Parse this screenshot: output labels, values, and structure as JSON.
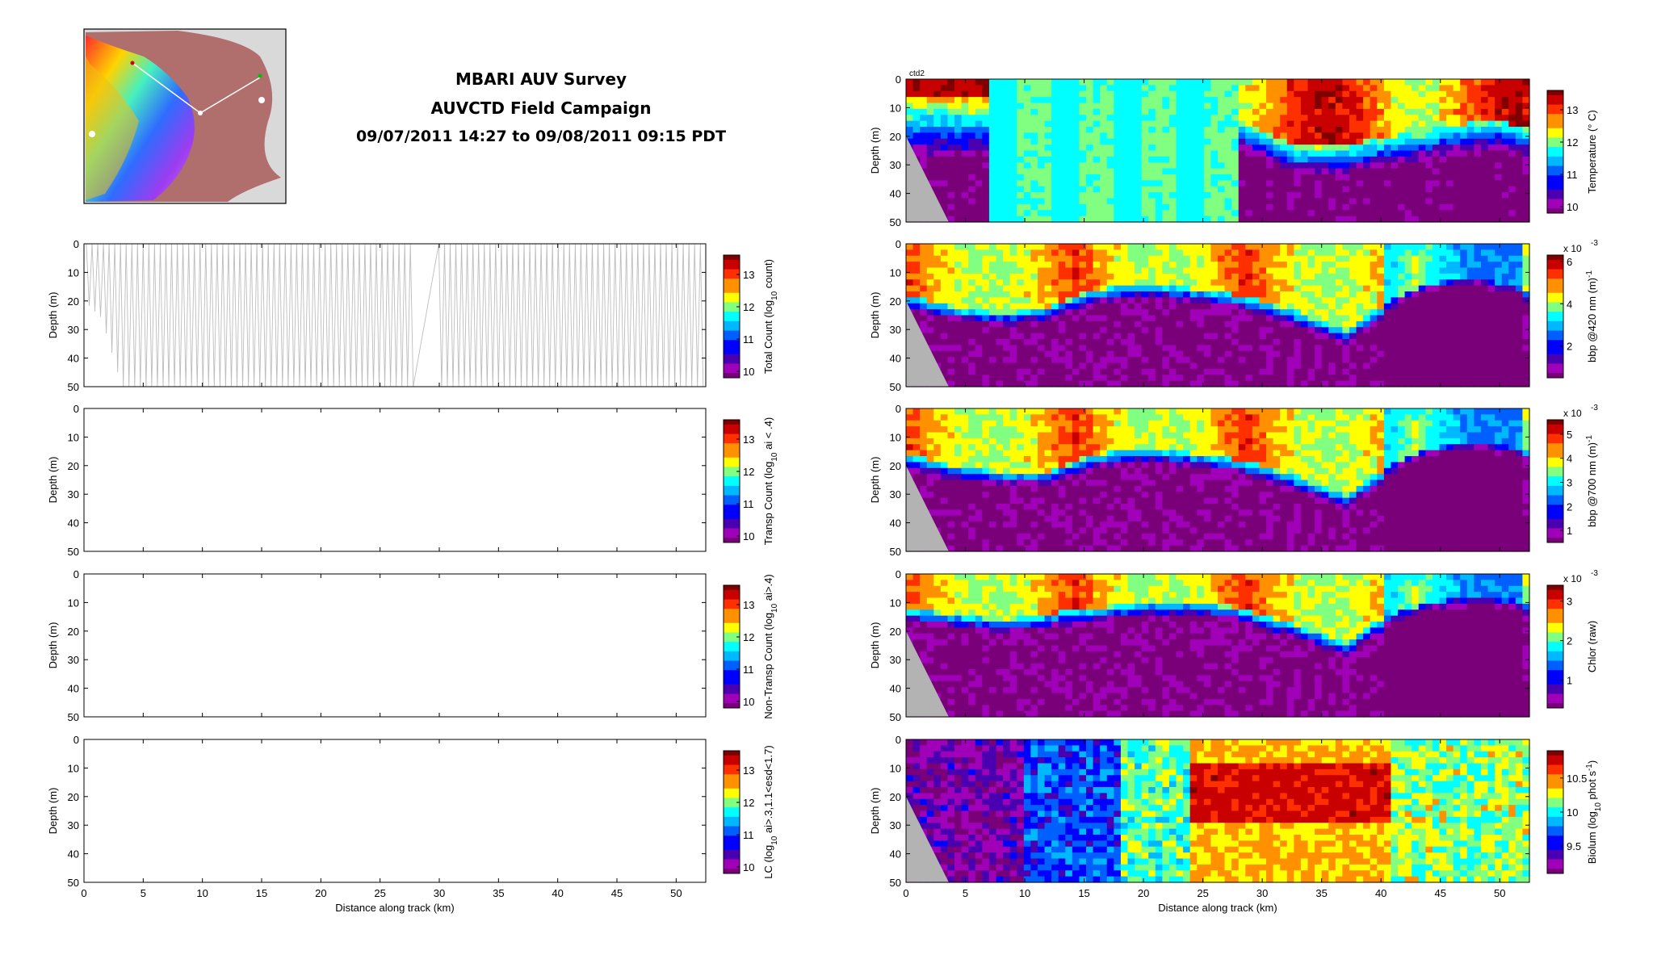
{
  "figure": {
    "title_line1": "MBARI AUV Survey",
    "title_line2": "AUVCTD Field Campaign",
    "title_line3": "09/07/2011 14:27 to 09/08/2011 09:15 PDT",
    "corner_label": "ctd2"
  },
  "colors": {
    "frame": "#000000",
    "trace": "#bdbdbd",
    "bathymetry": "#b3b3b3",
    "colormap": [
      "#7a007a",
      "#a000b8",
      "#4a00b0",
      "#0000ff",
      "#0060ff",
      "#00b8ff",
      "#00ffff",
      "#80ff80",
      "#ffff00",
      "#ff9000",
      "#ff3000",
      "#c80000",
      "#800000"
    ]
  },
  "map_inset": {
    "description_icon": "location-map-icon"
  },
  "chart_data": [
    {
      "id": "total-count",
      "type": "heatmap",
      "xlabel": "",
      "ylabel": "Depth (m)",
      "xlim": [
        0,
        52.5
      ],
      "ylim": [
        50,
        0
      ],
      "xticks": [],
      "yticks": [
        "0",
        "10",
        "20",
        "30",
        "40",
        "50"
      ],
      "colorbar": {
        "label_main": "Total Count (log",
        "label_sub": "10",
        "label_end": " count)",
        "ticks": [
          "10",
          "11",
          "12",
          "13"
        ],
        "range": [
          9.8,
          13.6
        ]
      },
      "trace": {
        "profile_spacing_km": 0.24,
        "gap_km": [
          28.0,
          29.8
        ],
        "shallow_edge": [
          [
            0,
            20
          ],
          [
            1.5,
            26
          ],
          [
            3.2,
            50
          ]
        ]
      }
    },
    {
      "id": "transp-count",
      "type": "heatmap",
      "xlabel": "",
      "ylabel": "Depth (m)",
      "xlim": [
        0,
        52.5
      ],
      "ylim": [
        50,
        0
      ],
      "xticks": [],
      "yticks": [
        "0",
        "10",
        "20",
        "30",
        "40",
        "50"
      ],
      "colorbar": {
        "label_main": "Transp Count (log",
        "label_sub": "10",
        "label_end": " ai < .4)",
        "ticks": [
          "10",
          "11",
          "12",
          "13"
        ],
        "range": [
          9.8,
          13.6
        ]
      }
    },
    {
      "id": "nontransp-count",
      "type": "heatmap",
      "xlabel": "",
      "ylabel": "Depth (m)",
      "xlim": [
        0,
        52.5
      ],
      "ylim": [
        50,
        0
      ],
      "xticks": [],
      "yticks": [
        "0",
        "10",
        "20",
        "30",
        "40",
        "50"
      ],
      "colorbar": {
        "label_main": "Non-Transp Count (log",
        "label_sub": "10",
        "label_end": " ai>.4)",
        "ticks": [
          "10",
          "11",
          "12",
          "13"
        ],
        "range": [
          9.8,
          13.6
        ]
      }
    },
    {
      "id": "lc-count",
      "type": "heatmap",
      "xlabel": "Distance along track (km)",
      "ylabel": "Depth (m)",
      "xlim": [
        0,
        52.5
      ],
      "ylim": [
        50,
        0
      ],
      "xticks": [
        "0",
        "5",
        "10",
        "15",
        "20",
        "25",
        "30",
        "35",
        "40",
        "45",
        "50"
      ],
      "yticks": [
        "0",
        "10",
        "20",
        "30",
        "40",
        "50"
      ],
      "colorbar": {
        "label_main": "LC (log",
        "label_sub": "10",
        "label_end": " ai>.3,1.1<esd<1.7)",
        "ticks": [
          "10",
          "11",
          "12",
          "13"
        ],
        "range": [
          9.8,
          13.6
        ]
      }
    },
    {
      "id": "temperature",
      "type": "heatmap",
      "xlabel": "",
      "ylabel": "Depth (m)",
      "xlim": [
        0,
        52.5
      ],
      "ylim": [
        50,
        0
      ],
      "xticks": [],
      "yticks": [
        "0",
        "10",
        "20",
        "30",
        "40",
        "50"
      ],
      "colorbar": {
        "label_main": "Temperature (° C)",
        "label_sub": "",
        "label_end": "",
        "ticks": [
          "10",
          "11",
          "12",
          "13"
        ],
        "range": [
          9.8,
          13.6
        ]
      },
      "field": {
        "kind": "temperature",
        "warm_start_km": 27.9,
        "thermocline_m": [
          [
            28,
            14
          ],
          [
            30,
            18
          ],
          [
            33,
            24
          ],
          [
            37,
            23
          ],
          [
            41,
            20
          ],
          [
            45,
            17
          ],
          [
            50,
            14
          ],
          [
            52.5,
            18
          ]
        ]
      }
    },
    {
      "id": "bbp420",
      "type": "heatmap",
      "xlabel": "",
      "ylabel": "Depth (m)",
      "xlim": [
        0,
        52.5
      ],
      "ylim": [
        50,
        0
      ],
      "xticks": [],
      "yticks": [
        "0",
        "10",
        "20",
        "30",
        "40",
        "50"
      ],
      "colorbar": {
        "label_main": "bbp @420 nm (m",
        "label_sup": "-1",
        "label_end": ")",
        "ticks": [
          "2",
          "4",
          "6"
        ],
        "range": [
          0.5,
          6.3
        ],
        "exponent": "x 10",
        "exponent_power": "-3"
      },
      "field": {
        "kind": "layer",
        "layer_depth_m": [
          [
            0,
            18
          ],
          [
            4,
            22
          ],
          [
            8,
            24
          ],
          [
            12,
            22
          ],
          [
            16,
            16
          ],
          [
            20,
            14
          ],
          [
            25,
            16
          ],
          [
            28,
            18
          ],
          [
            33,
            24
          ],
          [
            37,
            30
          ],
          [
            40,
            22
          ],
          [
            44,
            14
          ],
          [
            48,
            12
          ],
          [
            52.5,
            16
          ]
        ]
      }
    },
    {
      "id": "bbp700",
      "type": "heatmap",
      "xlabel": "",
      "ylabel": "Depth (m)",
      "xlim": [
        0,
        52.5
      ],
      "ylim": [
        50,
        0
      ],
      "xticks": [],
      "yticks": [
        "0",
        "10",
        "20",
        "30",
        "40",
        "50"
      ],
      "colorbar": {
        "label_main": "bbp @700 nm (m",
        "label_sup": "-1",
        "label_end": ")",
        "ticks": [
          "1",
          "2",
          "3",
          "4",
          "5"
        ],
        "range": [
          0.5,
          5.6
        ],
        "exponent": "x 10",
        "exponent_power": "-3"
      },
      "field": {
        "kind": "layer",
        "layer_depth_m": [
          [
            0,
            16
          ],
          [
            4,
            20
          ],
          [
            8,
            22
          ],
          [
            12,
            22
          ],
          [
            16,
            16
          ],
          [
            20,
            14
          ],
          [
            25,
            16
          ],
          [
            28,
            18
          ],
          [
            33,
            24
          ],
          [
            37,
            30
          ],
          [
            40,
            22
          ],
          [
            44,
            14
          ],
          [
            48,
            12
          ],
          [
            52.5,
            14
          ]
        ]
      }
    },
    {
      "id": "chlor",
      "type": "heatmap",
      "xlabel": "",
      "ylabel": "Depth (m)",
      "xlim": [
        0,
        52.5
      ],
      "ylim": [
        50,
        0
      ],
      "xticks": [],
      "yticks": [
        "0",
        "10",
        "20",
        "30",
        "40",
        "50"
      ],
      "colorbar": {
        "label_main": "Chlor (raw)",
        "label_sub": "",
        "label_end": "",
        "ticks": [
          "1",
          "2",
          "3"
        ],
        "range": [
          0.3,
          3.4
        ],
        "exponent": "x 10",
        "exponent_power": "-3"
      },
      "field": {
        "kind": "layer",
        "layer_depth_m": [
          [
            0,
            12
          ],
          [
            4,
            14
          ],
          [
            8,
            16
          ],
          [
            12,
            14
          ],
          [
            16,
            12
          ],
          [
            20,
            10
          ],
          [
            25,
            10
          ],
          [
            28,
            12
          ],
          [
            33,
            18
          ],
          [
            37,
            24
          ],
          [
            40,
            16
          ],
          [
            44,
            10
          ],
          [
            48,
            8
          ],
          [
            52.5,
            10
          ]
        ]
      }
    },
    {
      "id": "biolum",
      "type": "heatmap",
      "xlabel": "Distance along track (km)",
      "ylabel": "Depth (m)",
      "xlim": [
        0,
        52.5
      ],
      "ylim": [
        50,
        0
      ],
      "xticks": [
        "0",
        "5",
        "10",
        "15",
        "20",
        "25",
        "30",
        "35",
        "40",
        "45",
        "50"
      ],
      "yticks": [
        "0",
        "10",
        "20",
        "30",
        "40",
        "50"
      ],
      "colorbar": {
        "label_main": "Biolum (log",
        "label_sub": "10",
        "label_end": " phot s",
        "label_sup": "-1",
        "label_close": ")",
        "ticks": [
          "9.5",
          "10",
          "10.5"
        ],
        "range": [
          9.1,
          10.9
        ]
      },
      "field": {
        "kind": "biolum",
        "hot_core_km": [
          24,
          41
        ],
        "hot_core_m": [
          8,
          30
        ]
      }
    }
  ]
}
